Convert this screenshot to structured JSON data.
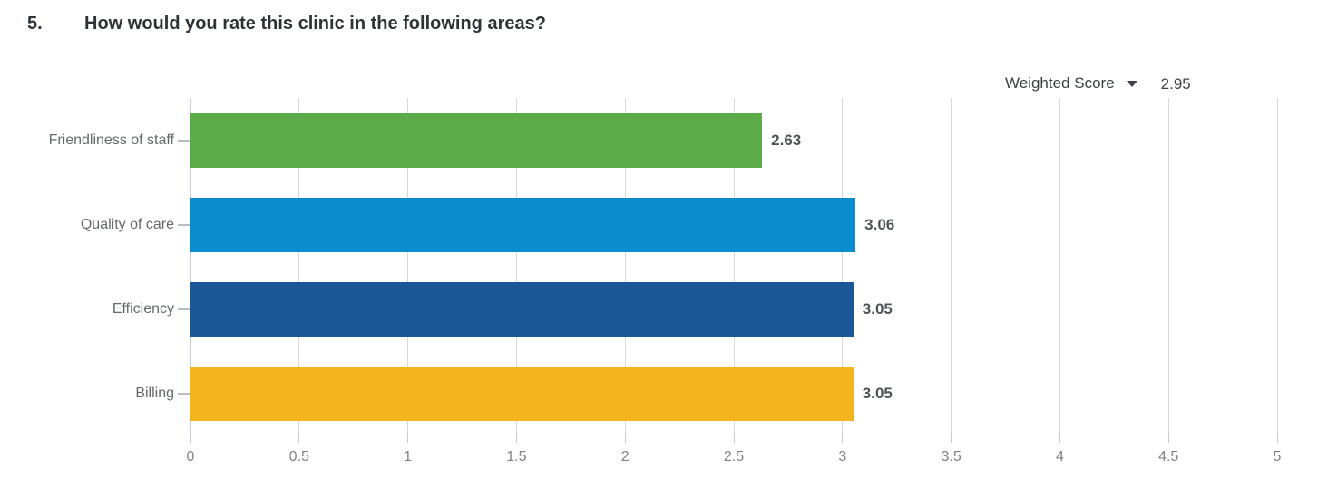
{
  "question": {
    "number": "5.",
    "text": "How would you rate this clinic in the following areas?"
  },
  "score_selector": {
    "label": "Weighted Score",
    "value": "2.95",
    "icon": "chevron-down-icon"
  },
  "chart_data": {
    "type": "bar",
    "orientation": "horizontal",
    "title": "",
    "xlabel": "",
    "ylabel": "",
    "xlim": [
      0,
      5
    ],
    "xticks": [
      "0",
      "0.5",
      "1",
      "1.5",
      "2",
      "2.5",
      "3",
      "3.5",
      "4",
      "4.5",
      "5"
    ],
    "grid": true,
    "legend": "none",
    "categories": [
      "Friendliness of staff",
      "Quality of care",
      "Efficiency",
      "Billing"
    ],
    "series": [
      {
        "name": "Weighted Score",
        "values": [
          2.63,
          3.06,
          3.05,
          3.05
        ],
        "value_labels": [
          "2.63",
          "3.06",
          "3.05",
          "3.05"
        ],
        "bar_colors": [
          "#5cad4a",
          "#0a8ccd",
          "#1b5797",
          "#f2b51e"
        ]
      }
    ]
  },
  "colors": {
    "title_text": "#2f3337",
    "category_text": "#66696c",
    "value_text": "#4f5357",
    "axis_text": "#7e8286",
    "header_text": "#3e4246",
    "gridline": "#d6d7d8",
    "zero_line": "#c7d0d7",
    "tick": "#c3cbd2",
    "bar_green": "#5cad4a",
    "bar_light_blue": "#0a8ccd",
    "bar_dark_blue": "#1b5797",
    "bar_yellow": "#f2b51e"
  }
}
